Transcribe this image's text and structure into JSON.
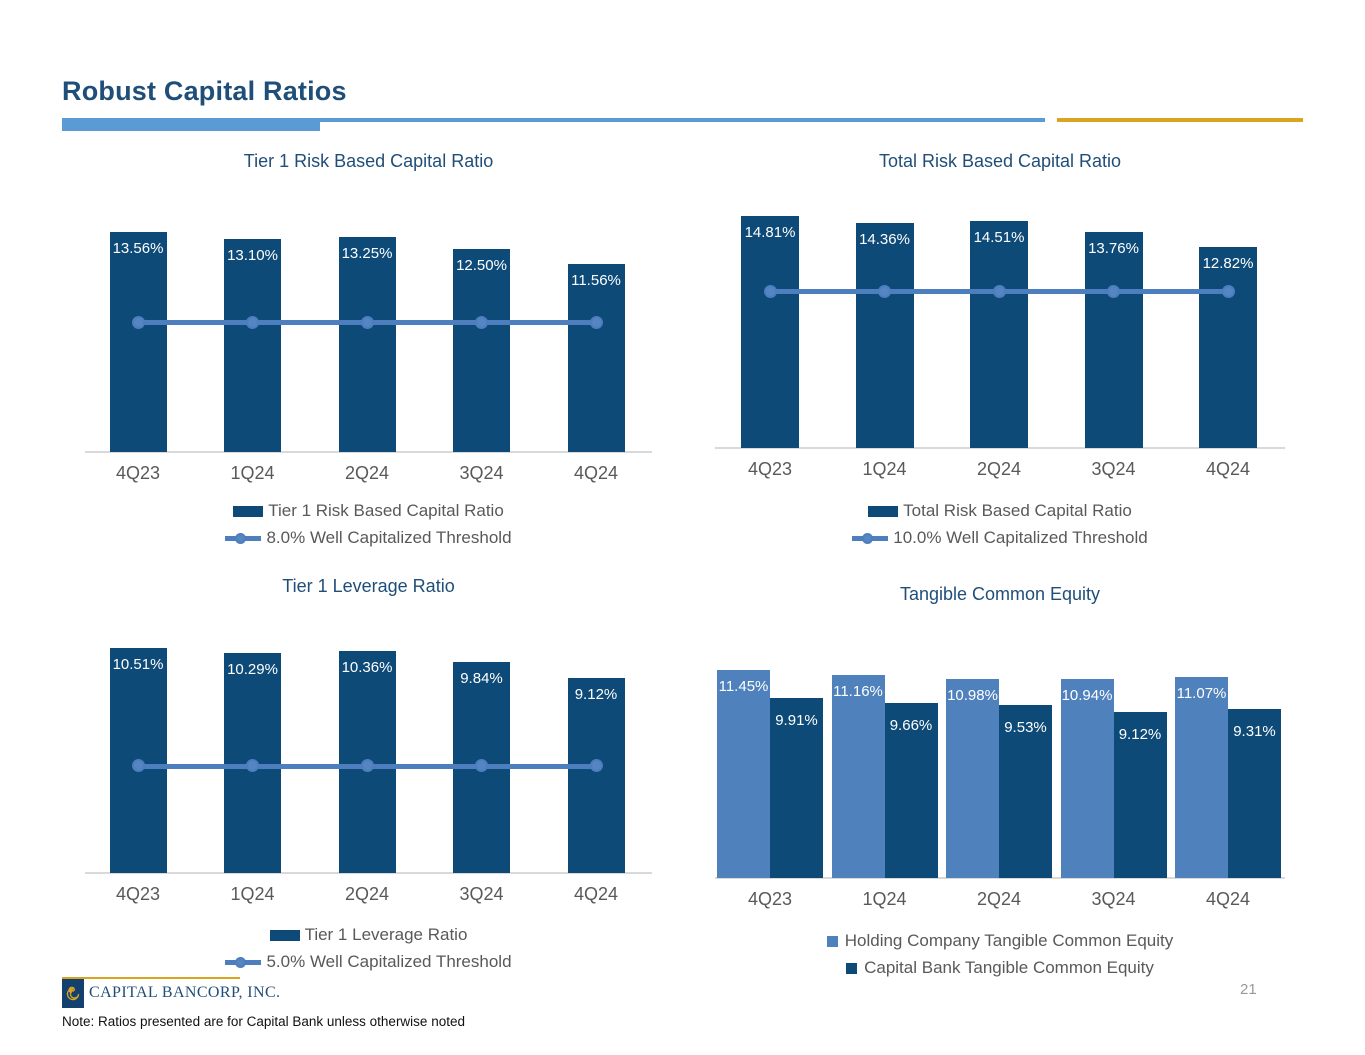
{
  "slide": {
    "title": "Robust Capital Ratios",
    "page_number": "21",
    "footnote": "Note: Ratios presented are for Capital Bank unless otherwise noted",
    "logo_text": "CAPITAL BANCORP, INC."
  },
  "colors": {
    "dark_bar": "#0d4a77",
    "light_bar": "#4f81bd",
    "threshold_line": "#4d7ebd",
    "threshold_dot_fill": "#5585c2",
    "title_blue": "#1f4e79",
    "axis_text": "#595959",
    "accent_light_blue": "#5b9bd5",
    "gold": "#d9a520"
  },
  "chart_data": [
    {
      "id": "tier1_risk",
      "type": "bar",
      "title": "Tier 1 Risk Based Capital Ratio",
      "categories": [
        "4Q23",
        "1Q24",
        "2Q24",
        "3Q24",
        "4Q24"
      ],
      "series": [
        {
          "name": "Tier 1 Risk Based Capital Ratio",
          "color": "#0d4a77",
          "swatch": "bar",
          "values": [
            13.56,
            13.1,
            13.25,
            12.5,
            11.56
          ],
          "labels": [
            "13.56%",
            "13.10%",
            "13.25%",
            "12.50%",
            "11.56%"
          ]
        }
      ],
      "threshold": {
        "value": 8.0,
        "label": "8.0% Well Capitalized Threshold",
        "color": "#4d7ebd"
      },
      "ylim": [
        0,
        13.56
      ],
      "grid": false,
      "legend_position": "bottom"
    },
    {
      "id": "total_risk",
      "type": "bar",
      "title": "Total Risk Based Capital Ratio",
      "categories": [
        "4Q23",
        "1Q24",
        "2Q24",
        "3Q24",
        "4Q24"
      ],
      "series": [
        {
          "name": "Total Risk Based Capital Ratio",
          "color": "#0d4a77",
          "swatch": "bar",
          "values": [
            14.81,
            14.36,
            14.51,
            13.76,
            12.82
          ],
          "labels": [
            "14.81%",
            "14.36%",
            "14.51%",
            "13.76%",
            "12.82%"
          ]
        }
      ],
      "threshold": {
        "value": 10.0,
        "label": "10.0% Well Capitalized Threshold",
        "color": "#4d7ebd"
      },
      "ylim": [
        0,
        14.81
      ],
      "grid": false,
      "legend_position": "bottom"
    },
    {
      "id": "tier1_leverage",
      "type": "bar",
      "title": "Tier 1 Leverage Ratio",
      "categories": [
        "4Q23",
        "1Q24",
        "2Q24",
        "3Q24",
        "4Q24"
      ],
      "series": [
        {
          "name": "Tier 1 Leverage Ratio",
          "color": "#0d4a77",
          "swatch": "bar",
          "values": [
            10.51,
            10.29,
            10.36,
            9.84,
            9.12
          ],
          "labels": [
            "10.51%",
            "10.29%",
            "10.36%",
            "9.84%",
            "9.12%"
          ]
        }
      ],
      "threshold": {
        "value": 5.0,
        "label": "5.0% Well Capitalized Threshold",
        "color": "#4d7ebd"
      },
      "ylim": [
        0,
        10.51
      ],
      "grid": false,
      "legend_position": "bottom"
    },
    {
      "id": "tce",
      "type": "bar",
      "title": "Tangible Common Equity",
      "categories": [
        "4Q23",
        "1Q24",
        "2Q24",
        "3Q24",
        "4Q24"
      ],
      "series": [
        {
          "name": "Holding Company Tangible Common Equity",
          "color": "#4f81bd",
          "swatch": "square",
          "values": [
            11.45,
            11.16,
            10.98,
            10.94,
            11.07
          ],
          "labels": [
            "11.45%",
            "11.16%",
            "10.98%",
            "10.94%",
            "11.07%"
          ]
        },
        {
          "name": "Capital Bank Tangible Common Equity",
          "color": "#0d4a77",
          "swatch": "square",
          "values": [
            9.91,
            9.66,
            9.53,
            9.12,
            9.31
          ],
          "labels": [
            "9.91%",
            "9.66%",
            "9.53%",
            "9.12%",
            "9.31%"
          ]
        }
      ],
      "threshold": null,
      "ylim": [
        0,
        11.45
      ],
      "grid": false,
      "legend_position": "bottom"
    }
  ]
}
